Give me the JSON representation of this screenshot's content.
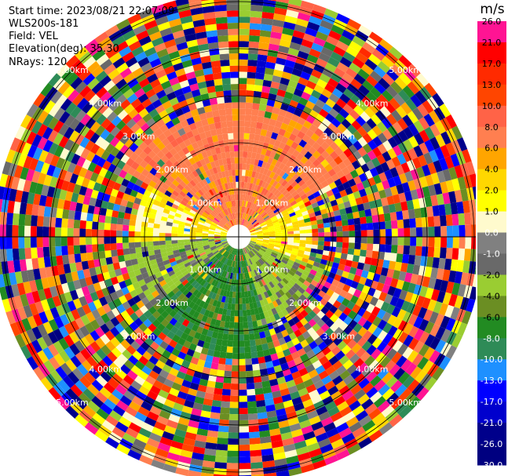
{
  "info": {
    "start_time": "Start time: 2023/08/21 22:07:09",
    "site": "WLS200s-181",
    "field": "Field: VEL",
    "elevation": "Elevation(deg): 35.30",
    "nrays": "NRays: 120"
  },
  "colorbar": {
    "unit": "m/s",
    "ticks": [
      "26.0",
      "21.0",
      "17.0",
      "13.0",
      "10.0",
      "8.0",
      "6.0",
      "4.0",
      "2.0",
      "1.0",
      "0.0",
      "-1.0",
      "-2.0",
      "-4.0",
      "-6.0",
      "-8.0",
      "-10.0",
      "-13.0",
      "-17.0",
      "-21.0",
      "-26.0",
      "-30.0"
    ],
    "colors": [
      "#ff1493",
      "#ff0000",
      "#ff2a00",
      "#ff4500",
      "#ff6347",
      "#ff7f50",
      "#ffa500",
      "#ffd700",
      "#ffff00",
      "#fffacd",
      "#808080",
      "#696969",
      "#9acd32",
      "#6b8e23",
      "#228b22",
      "#2e8b57",
      "#1e90ff",
      "#0000ff",
      "#0000cd",
      "#00008b",
      "#000080"
    ]
  },
  "chart_data": {
    "type": "heatmap",
    "title": "",
    "field": "VEL",
    "units": "m/s",
    "n_rays": 120,
    "elevation_deg": 35.3,
    "range_rings_km": [
      1.0,
      2.0,
      3.0,
      4.0,
      5.0
    ],
    "ring_labels": [
      "1.00km",
      "2.00km",
      "3.00km",
      "4.00km",
      "5.00km"
    ],
    "max_range_km": 5.2,
    "grid": true,
    "structure": [
      {
        "sector": "north",
        "range_km": [
          0,
          2.8
        ],
        "velocity_ms": 7
      },
      {
        "sector": "west",
        "range_km": [
          0,
          2.2
        ],
        "velocity_ms": 1.5
      },
      {
        "sector": "east",
        "range_km": [
          0,
          1.6
        ],
        "velocity_ms": 2
      },
      {
        "sector": "southwest",
        "range_km": [
          0,
          2.5
        ],
        "velocity_ms": -3
      },
      {
        "sector": "south",
        "range_km": [
          0,
          2.6
        ],
        "velocity_ms": -7
      },
      {
        "sector": "all",
        "range_km": [
          2.6,
          5.2
        ],
        "velocity_ms": "noise"
      }
    ]
  },
  "colors": {
    "background": "#ffffff",
    "crosshair": "#000000"
  }
}
